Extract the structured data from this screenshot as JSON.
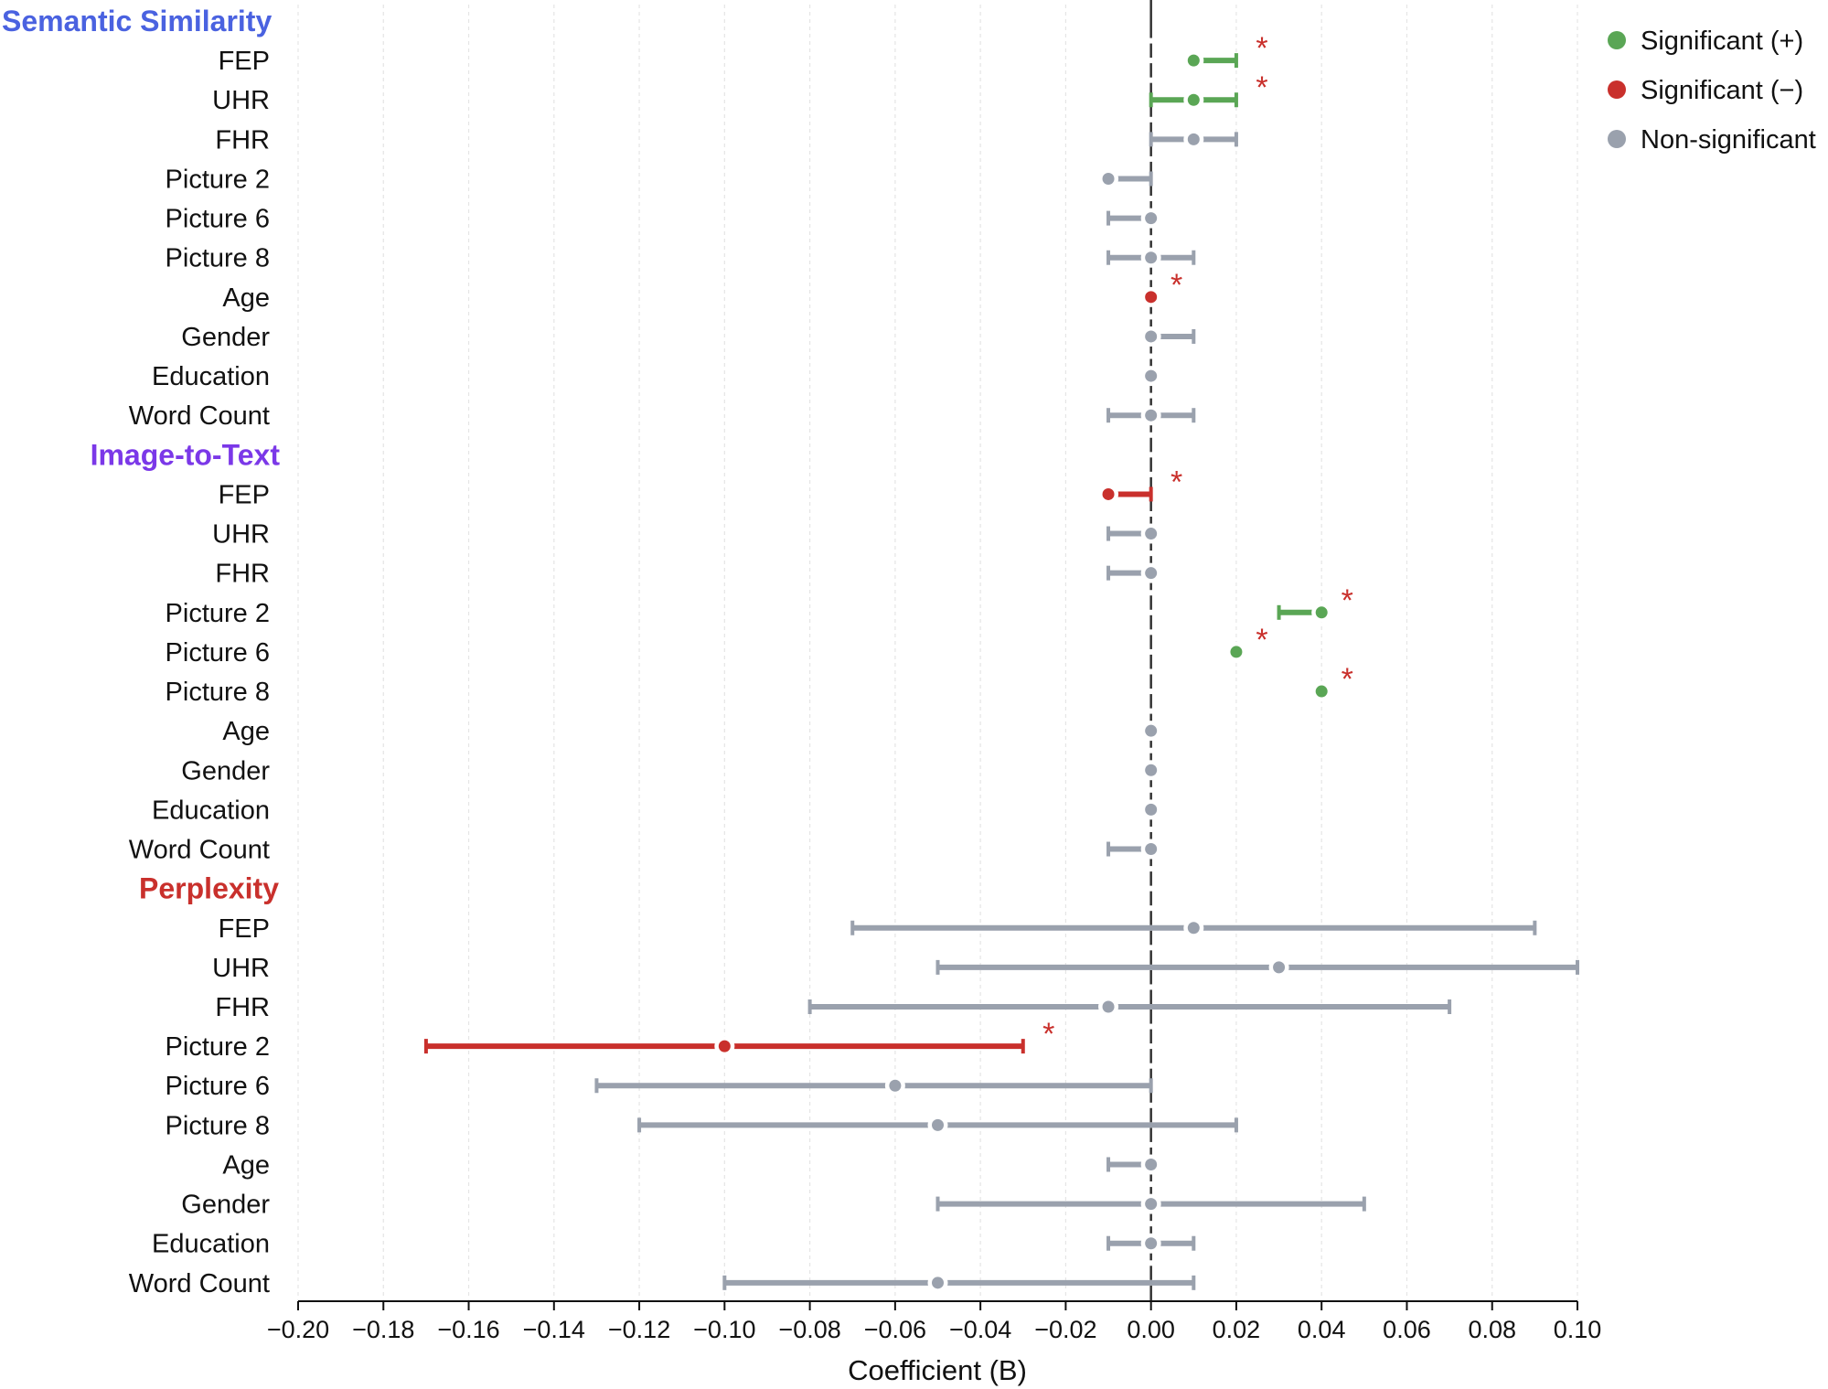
{
  "chart_data": {
    "type": "forest",
    "xlabel": "Coefficient (B)",
    "xlim": [
      -0.2,
      0.1
    ],
    "xticks": [
      -0.2,
      -0.18,
      -0.16,
      -0.14,
      -0.12,
      -0.1,
      -0.08,
      -0.06,
      -0.04,
      -0.02,
      0.0,
      0.02,
      0.04,
      0.06,
      0.08,
      0.1
    ],
    "xtick_labels": [
      "−0.20",
      "−0.18",
      "−0.16",
      "−0.14",
      "−0.12",
      "−0.10",
      "−0.08",
      "−0.06",
      "−0.04",
      "−0.02",
      "0.00",
      "0.02",
      "0.04",
      "0.06",
      "0.08",
      "0.10"
    ],
    "grid": true,
    "legend_position": "top-right",
    "colors": {
      "positive": "#5aa655",
      "negative": "#c9302c",
      "nonsig": "#9aa1ad",
      "semantic_title": "#4a62e0",
      "image_title": "#7b38e8",
      "perplexity_title": "#c9302c"
    },
    "legend": [
      {
        "key": "positive",
        "label": "Significant (+)"
      },
      {
        "key": "negative",
        "label": "Significant (−)"
      },
      {
        "key": "nonsig",
        "label": "Non-significant"
      }
    ],
    "significance_marker": "*",
    "groups": [
      {
        "title": "Semantic Similarity",
        "color_key": "semantic_title",
        "rows": [
          {
            "label": "FEP",
            "est": 0.01,
            "lo": 0.01,
            "hi": 0.02,
            "sig": "positive"
          },
          {
            "label": "UHR",
            "est": 0.01,
            "lo": 0.0,
            "hi": 0.02,
            "sig": "positive"
          },
          {
            "label": "FHR",
            "est": 0.01,
            "lo": 0.0,
            "hi": 0.02,
            "sig": "nonsig"
          },
          {
            "label": "Picture 2",
            "est": -0.01,
            "lo": -0.01,
            "hi": 0.0,
            "sig": "nonsig"
          },
          {
            "label": "Picture 6",
            "est": 0.0,
            "lo": -0.01,
            "hi": 0.0,
            "sig": "nonsig"
          },
          {
            "label": "Picture 8",
            "est": 0.0,
            "lo": -0.01,
            "hi": 0.01,
            "sig": "nonsig"
          },
          {
            "label": "Age",
            "est": 0.0,
            "lo": 0.0,
            "hi": 0.0,
            "sig": "negative"
          },
          {
            "label": "Gender",
            "est": 0.0,
            "lo": 0.0,
            "hi": 0.01,
            "sig": "nonsig"
          },
          {
            "label": "Education",
            "est": 0.0,
            "lo": 0.0,
            "hi": 0.0,
            "sig": "nonsig"
          },
          {
            "label": "Word Count",
            "est": 0.0,
            "lo": -0.01,
            "hi": 0.01,
            "sig": "nonsig"
          }
        ]
      },
      {
        "title": "Image-to-Text",
        "color_key": "image_title",
        "rows": [
          {
            "label": "FEP",
            "est": -0.01,
            "lo": -0.01,
            "hi": 0.0,
            "sig": "negative"
          },
          {
            "label": "UHR",
            "est": 0.0,
            "lo": -0.01,
            "hi": 0.0,
            "sig": "nonsig"
          },
          {
            "label": "FHR",
            "est": 0.0,
            "lo": -0.01,
            "hi": 0.0,
            "sig": "nonsig"
          },
          {
            "label": "Picture 2",
            "est": 0.04,
            "lo": 0.03,
            "hi": 0.04,
            "sig": "positive"
          },
          {
            "label": "Picture 6",
            "est": 0.02,
            "lo": 0.02,
            "hi": 0.02,
            "sig": "positive"
          },
          {
            "label": "Picture 8",
            "est": 0.04,
            "lo": 0.04,
            "hi": 0.04,
            "sig": "positive"
          },
          {
            "label": "Age",
            "est": 0.0,
            "lo": 0.0,
            "hi": 0.0,
            "sig": "nonsig"
          },
          {
            "label": "Gender",
            "est": 0.0,
            "lo": 0.0,
            "hi": 0.0,
            "sig": "nonsig"
          },
          {
            "label": "Education",
            "est": 0.0,
            "lo": 0.0,
            "hi": 0.0,
            "sig": "nonsig"
          },
          {
            "label": "Word Count",
            "est": 0.0,
            "lo": -0.01,
            "hi": 0.0,
            "sig": "nonsig"
          }
        ]
      },
      {
        "title": "Perplexity",
        "color_key": "perplexity_title",
        "rows": [
          {
            "label": "FEP",
            "est": 0.01,
            "lo": -0.07,
            "hi": 0.09,
            "sig": "nonsig"
          },
          {
            "label": "UHR",
            "est": 0.03,
            "lo": -0.05,
            "hi": 0.1,
            "sig": "nonsig"
          },
          {
            "label": "FHR",
            "est": -0.01,
            "lo": -0.08,
            "hi": 0.07,
            "sig": "nonsig"
          },
          {
            "label": "Picture 2",
            "est": -0.1,
            "lo": -0.17,
            "hi": -0.03,
            "sig": "negative"
          },
          {
            "label": "Picture 6",
            "est": -0.06,
            "lo": -0.13,
            "hi": 0.0,
            "sig": "nonsig"
          },
          {
            "label": "Picture 8",
            "est": -0.05,
            "lo": -0.12,
            "hi": 0.02,
            "sig": "nonsig"
          },
          {
            "label": "Age",
            "est": 0.0,
            "lo": -0.01,
            "hi": 0.0,
            "sig": "nonsig"
          },
          {
            "label": "Gender",
            "est": 0.0,
            "lo": -0.05,
            "hi": 0.05,
            "sig": "nonsig"
          },
          {
            "label": "Education",
            "est": 0.0,
            "lo": -0.01,
            "hi": 0.01,
            "sig": "nonsig"
          },
          {
            "label": "Word Count",
            "est": -0.05,
            "lo": -0.1,
            "hi": 0.01,
            "sig": "nonsig"
          }
        ]
      }
    ]
  }
}
